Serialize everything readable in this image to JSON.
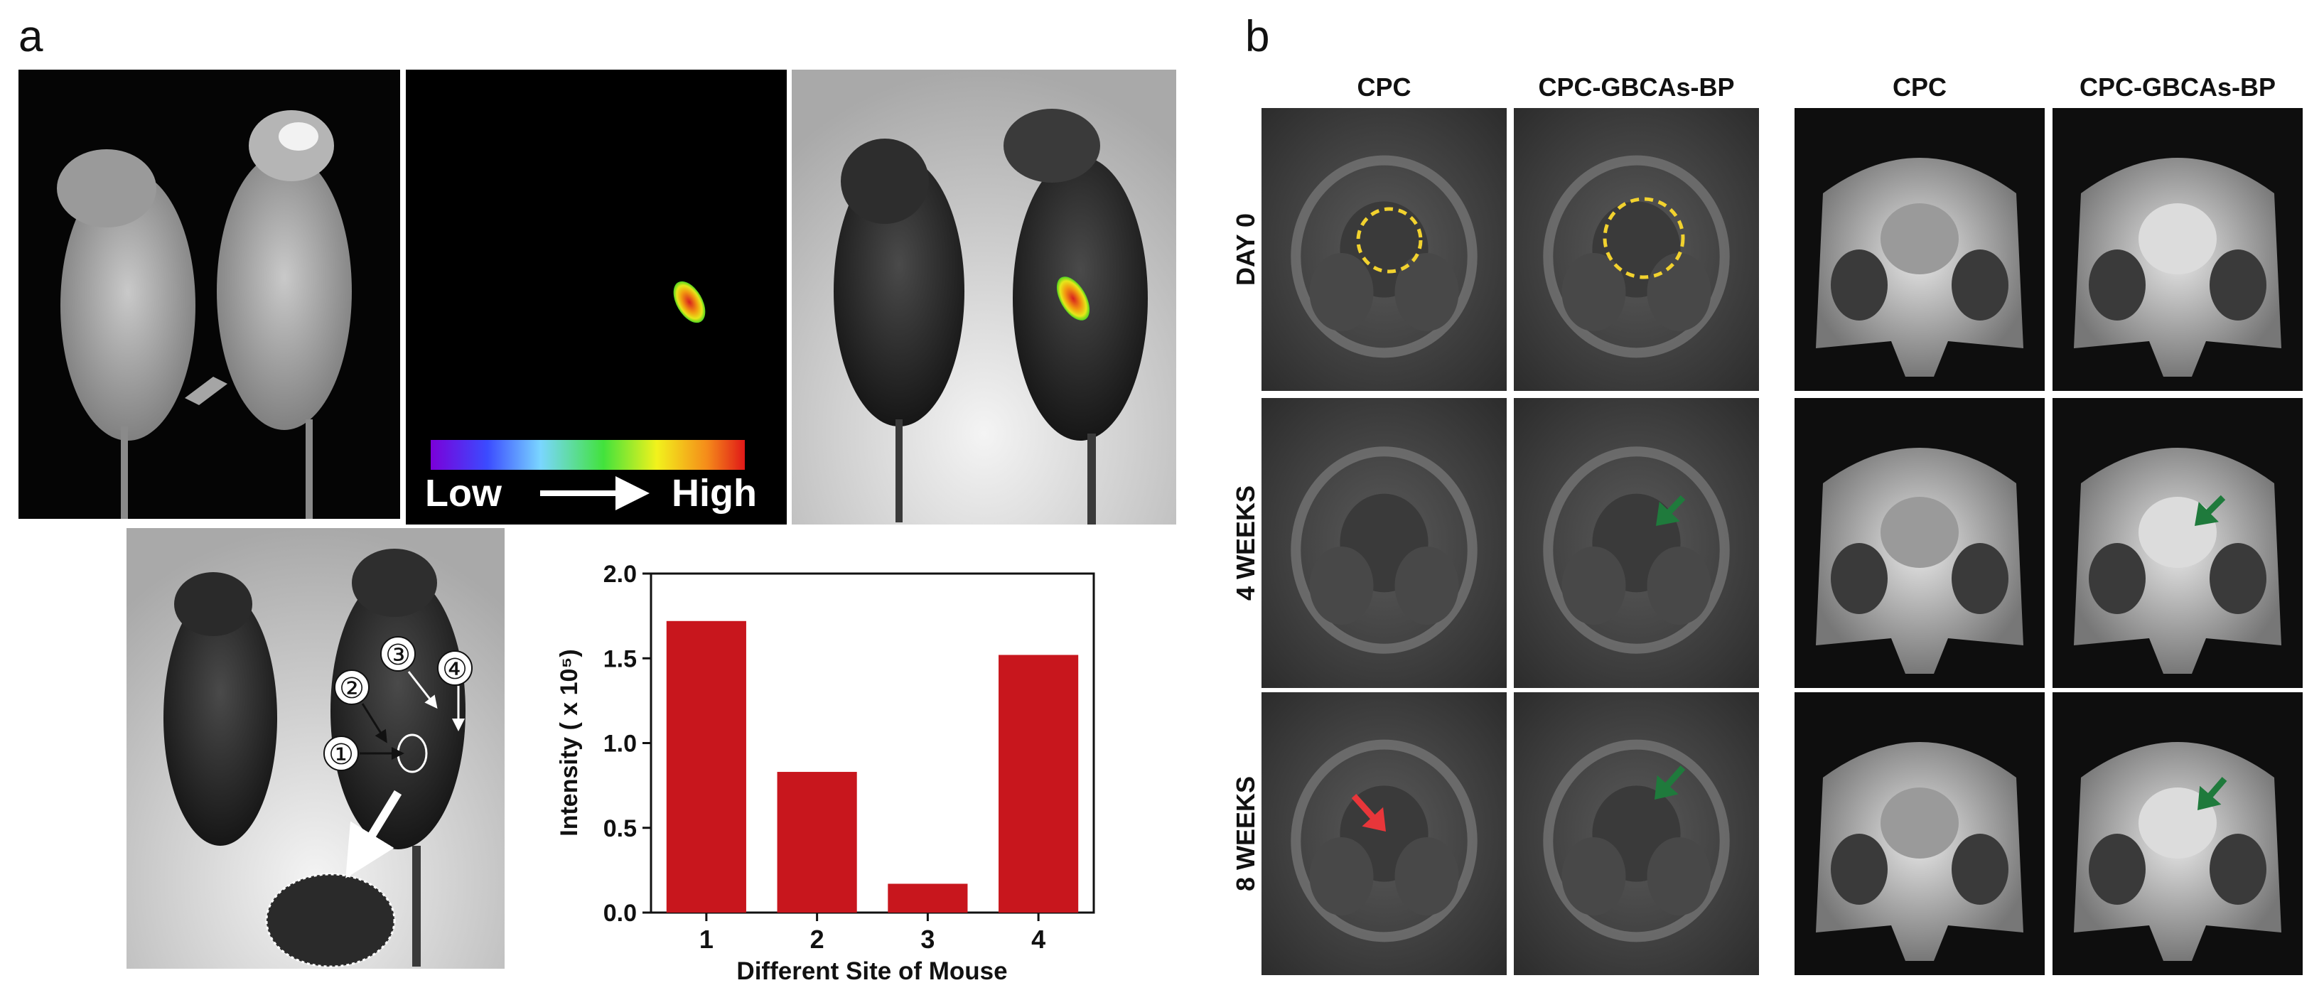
{
  "panels": {
    "a": {
      "label": "a",
      "colorbar": {
        "low": "Low",
        "high": "High"
      },
      "site_markers": [
        "①",
        "②",
        "③",
        "④"
      ],
      "chart_data": {
        "type": "bar",
        "categories": [
          "1",
          "2",
          "3",
          "4"
        ],
        "values": [
          1.72,
          0.83,
          0.17,
          1.52
        ],
        "xlabel": "Different Site of Mouse",
        "ylabel": "Intensity ( x 10⁵)",
        "ylim": [
          0,
          2.0
        ],
        "yticks": [
          0.0,
          0.5,
          1.0,
          1.5,
          2.0
        ],
        "ytick_labels": [
          "0.0",
          "0.5",
          "1.0",
          "1.5",
          "2.0"
        ],
        "bar_color": "#c8161d",
        "grid": false
      }
    },
    "b": {
      "label": "b",
      "column_headers": [
        "CPC",
        "CPC-GBCAs-BP",
        "CPC",
        "CPC-GBCAs-BP"
      ],
      "row_labels": [
        "DAY 0",
        "4 WEEKS",
        "8 WEEKS"
      ],
      "colors": {
        "circle": "#f2d22e",
        "green_arrow": "#1f7a3c",
        "red_arrow": "#e8363a"
      }
    }
  }
}
